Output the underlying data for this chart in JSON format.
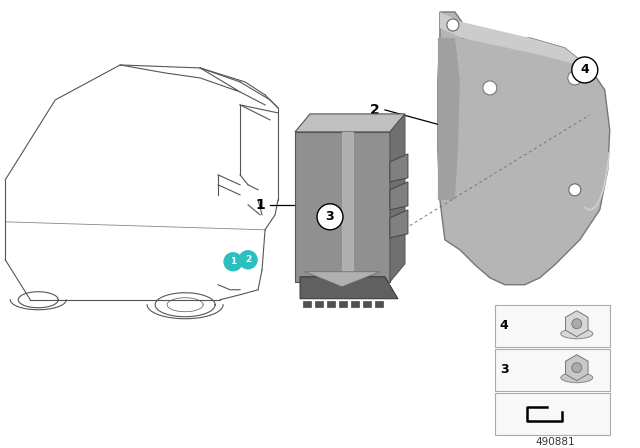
{
  "background_color": "#ffffff",
  "part_numbers": {
    "label_1": "1",
    "label_2": "2",
    "label_3": "3",
    "label_4": "4"
  },
  "diagram_id": "490881",
  "callout_circle_color": "#2bbfbf",
  "callout_text_color": "#ffffff",
  "line_color": "#000000",
  "unit_color": "#8a8a8a",
  "unit_light": "#aaaaaa",
  "unit_dark": "#666666",
  "bracket_color": "#b0b0b0",
  "bracket_edge": "#888888",
  "small_box_bg": "#f5f5f5",
  "nut4_color": "#d0d0d0",
  "nut3_color": "#c0c0c0"
}
